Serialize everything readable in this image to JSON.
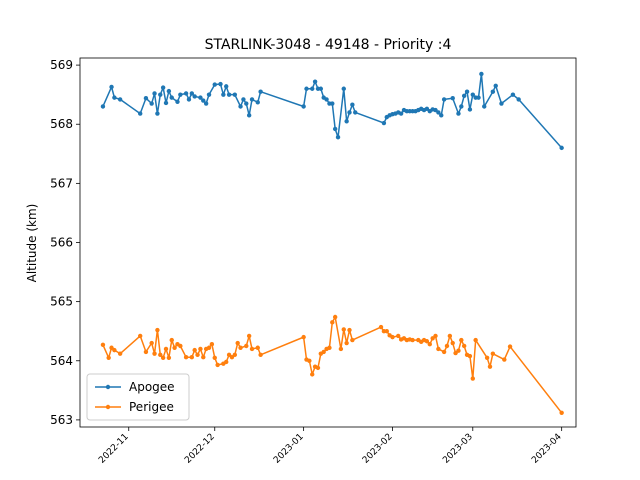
{
  "chart_data": {
    "type": "line",
    "title": "STARLINK-3048 - 49148 - Priority :4",
    "xlabel": "",
    "ylabel": "Altitude (km)",
    "x_axis_kind": "date",
    "xlim": [
      "2022-10-15",
      "2023-04-06"
    ],
    "ylim": [
      562.88,
      569.12
    ],
    "x_ticks": [
      "2022-11-01",
      "2022-12-01",
      "2023-01-01",
      "2023-02-01",
      "2023-03-01",
      "2023-04-01"
    ],
    "x_tick_labels": [
      "2022-11",
      "2022-12",
      "2023-01",
      "2023-02",
      "2023-03",
      "2023-04"
    ],
    "y_ticks": [
      563,
      564,
      565,
      566,
      567,
      568,
      569
    ],
    "y_tick_labels": [
      "563",
      "564",
      "565",
      "566",
      "567",
      "568",
      "569"
    ],
    "grid": false,
    "legend_position": "lower-left",
    "series": [
      {
        "name": "Apogee",
        "color": "#1f77b4",
        "points": [
          [
            "2022-10-23",
            568.3
          ],
          [
            "2022-10-26",
            568.63
          ],
          [
            "2022-10-27",
            568.45
          ],
          [
            "2022-10-29",
            568.42
          ],
          [
            "2022-11-05",
            568.18
          ],
          [
            "2022-11-07",
            568.44
          ],
          [
            "2022-11-09",
            568.35
          ],
          [
            "2022-11-10",
            568.52
          ],
          [
            "2022-11-11",
            568.18
          ],
          [
            "2022-11-12",
            568.5
          ],
          [
            "2022-11-13",
            568.62
          ],
          [
            "2022-11-14",
            568.36
          ],
          [
            "2022-11-15",
            568.56
          ],
          [
            "2022-11-16",
            568.45
          ],
          [
            "2022-11-18",
            568.38
          ],
          [
            "2022-11-19",
            568.5
          ],
          [
            "2022-11-21",
            568.52
          ],
          [
            "2022-11-22",
            568.42
          ],
          [
            "2022-11-23",
            568.52
          ],
          [
            "2022-11-24",
            568.47
          ],
          [
            "2022-11-26",
            568.45
          ],
          [
            "2022-11-27",
            568.4
          ],
          [
            "2022-11-28",
            568.35
          ],
          [
            "2022-11-29",
            568.5
          ],
          [
            "2022-12-01",
            568.67
          ],
          [
            "2022-12-03",
            568.68
          ],
          [
            "2022-12-04",
            568.5
          ],
          [
            "2022-12-05",
            568.64
          ],
          [
            "2022-12-06",
            568.5
          ],
          [
            "2022-12-08",
            568.5
          ],
          [
            "2022-12-10",
            568.3
          ],
          [
            "2022-12-11",
            568.42
          ],
          [
            "2022-12-12",
            568.35
          ],
          [
            "2022-12-13",
            568.15
          ],
          [
            "2022-12-14",
            568.42
          ],
          [
            "2022-12-16",
            568.37
          ],
          [
            "2022-12-17",
            568.55
          ],
          [
            "2023-01-01",
            568.3
          ],
          [
            "2023-01-02",
            568.6
          ],
          [
            "2023-01-04",
            568.6
          ],
          [
            "2023-01-05",
            568.72
          ],
          [
            "2023-01-06",
            568.6
          ],
          [
            "2023-01-07",
            568.6
          ],
          [
            "2023-01-08",
            568.45
          ],
          [
            "2023-01-09",
            568.42
          ],
          [
            "2023-01-10",
            568.35
          ],
          [
            "2023-01-11",
            568.35
          ],
          [
            "2023-01-12",
            567.92
          ],
          [
            "2023-01-13",
            567.78
          ],
          [
            "2023-01-15",
            568.6
          ],
          [
            "2023-01-16",
            568.05
          ],
          [
            "2023-01-17",
            568.2
          ],
          [
            "2023-01-18",
            568.33
          ],
          [
            "2023-01-19",
            568.2
          ],
          [
            "2023-01-29",
            568.02
          ],
          [
            "2023-01-30",
            568.12
          ],
          [
            "2023-01-31",
            568.15
          ],
          [
            "2023-02-01",
            568.17
          ],
          [
            "2023-02-02",
            568.18
          ],
          [
            "2023-02-03",
            568.2
          ],
          [
            "2023-02-04",
            568.18
          ],
          [
            "2023-02-05",
            568.24
          ],
          [
            "2023-02-06",
            568.22
          ],
          [
            "2023-02-07",
            568.22
          ],
          [
            "2023-02-08",
            568.22
          ],
          [
            "2023-02-09",
            568.22
          ],
          [
            "2023-02-10",
            568.24
          ],
          [
            "2023-02-11",
            568.26
          ],
          [
            "2023-02-12",
            568.24
          ],
          [
            "2023-02-13",
            568.26
          ],
          [
            "2023-02-14",
            568.22
          ],
          [
            "2023-02-15",
            568.25
          ],
          [
            "2023-02-16",
            568.24
          ],
          [
            "2023-02-17",
            568.2
          ],
          [
            "2023-02-18",
            568.15
          ],
          [
            "2023-02-19",
            568.42
          ],
          [
            "2023-02-22",
            568.44
          ],
          [
            "2023-02-24",
            568.18
          ],
          [
            "2023-02-25",
            568.3
          ],
          [
            "2023-02-26",
            568.48
          ],
          [
            "2023-02-27",
            568.55
          ],
          [
            "2023-02-28",
            568.25
          ],
          [
            "2023-03-01",
            568.5
          ],
          [
            "2023-03-02",
            568.45
          ],
          [
            "2023-03-03",
            568.45
          ],
          [
            "2023-03-04",
            568.85
          ],
          [
            "2023-03-05",
            568.3
          ],
          [
            "2023-03-08",
            568.55
          ],
          [
            "2023-03-09",
            568.65
          ],
          [
            "2023-03-11",
            568.35
          ],
          [
            "2023-03-15",
            568.5
          ],
          [
            "2023-03-17",
            568.42
          ],
          [
            "2023-04-01",
            567.6
          ]
        ]
      },
      {
        "name": "Perigee",
        "color": "#ff7f0e",
        "points": [
          [
            "2022-10-23",
            564.27
          ],
          [
            "2022-10-25",
            564.05
          ],
          [
            "2022-10-26",
            564.22
          ],
          [
            "2022-10-27",
            564.18
          ],
          [
            "2022-10-29",
            564.12
          ],
          [
            "2022-11-05",
            564.42
          ],
          [
            "2022-11-07",
            564.15
          ],
          [
            "2022-11-09",
            564.3
          ],
          [
            "2022-11-10",
            564.12
          ],
          [
            "2022-11-11",
            564.52
          ],
          [
            "2022-11-12",
            564.1
          ],
          [
            "2022-11-13",
            564.05
          ],
          [
            "2022-11-14",
            564.2
          ],
          [
            "2022-11-15",
            564.05
          ],
          [
            "2022-11-16",
            564.35
          ],
          [
            "2022-11-17",
            564.22
          ],
          [
            "2022-11-18",
            564.28
          ],
          [
            "2022-11-19",
            564.25
          ],
          [
            "2022-11-21",
            564.06
          ],
          [
            "2022-11-23",
            564.06
          ],
          [
            "2022-11-24",
            564.18
          ],
          [
            "2022-11-25",
            564.1
          ],
          [
            "2022-11-26",
            564.2
          ],
          [
            "2022-11-27",
            564.06
          ],
          [
            "2022-11-28",
            564.2
          ],
          [
            "2022-11-29",
            564.22
          ],
          [
            "2022-11-30",
            564.28
          ],
          [
            "2022-12-01",
            564.05
          ],
          [
            "2022-12-02",
            563.93
          ],
          [
            "2022-12-04",
            563.95
          ],
          [
            "2022-12-05",
            563.98
          ],
          [
            "2022-12-06",
            564.1
          ],
          [
            "2022-12-07",
            564.06
          ],
          [
            "2022-12-08",
            564.1
          ],
          [
            "2022-12-09",
            564.3
          ],
          [
            "2022-12-10",
            564.22
          ],
          [
            "2022-12-12",
            564.25
          ],
          [
            "2022-12-13",
            564.42
          ],
          [
            "2022-12-14",
            564.2
          ],
          [
            "2022-12-16",
            564.22
          ],
          [
            "2022-12-17",
            564.1
          ],
          [
            "2023-01-01",
            564.4
          ],
          [
            "2023-01-02",
            564.02
          ],
          [
            "2023-01-03",
            564.0
          ],
          [
            "2023-01-04",
            563.77
          ],
          [
            "2023-01-05",
            563.9
          ],
          [
            "2023-01-06",
            563.88
          ],
          [
            "2023-01-07",
            564.12
          ],
          [
            "2023-01-08",
            564.15
          ],
          [
            "2023-01-09",
            564.2
          ],
          [
            "2023-01-10",
            564.22
          ],
          [
            "2023-01-11",
            564.65
          ],
          [
            "2023-01-12",
            564.74
          ],
          [
            "2023-01-14",
            564.2
          ],
          [
            "2023-01-15",
            564.53
          ],
          [
            "2023-01-16",
            564.3
          ],
          [
            "2023-01-17",
            564.52
          ],
          [
            "2023-01-18",
            564.35
          ],
          [
            "2023-01-28",
            564.57
          ],
          [
            "2023-01-29",
            564.5
          ],
          [
            "2023-01-30",
            564.5
          ],
          [
            "2023-01-31",
            564.43
          ],
          [
            "2023-02-01",
            564.4
          ],
          [
            "2023-02-03",
            564.42
          ],
          [
            "2023-02-04",
            564.36
          ],
          [
            "2023-02-05",
            564.38
          ],
          [
            "2023-02-06",
            564.35
          ],
          [
            "2023-02-07",
            564.36
          ],
          [
            "2023-02-08",
            564.35
          ],
          [
            "2023-02-10",
            564.35
          ],
          [
            "2023-02-11",
            564.32
          ],
          [
            "2023-02-12",
            564.35
          ],
          [
            "2023-02-13",
            564.33
          ],
          [
            "2023-02-14",
            564.28
          ],
          [
            "2023-02-15",
            564.38
          ],
          [
            "2023-02-16",
            564.42
          ],
          [
            "2023-02-17",
            564.2
          ],
          [
            "2023-02-19",
            564.15
          ],
          [
            "2023-02-20",
            564.25
          ],
          [
            "2023-02-21",
            564.42
          ],
          [
            "2023-02-22",
            564.3
          ],
          [
            "2023-02-23",
            564.13
          ],
          [
            "2023-02-24",
            564.17
          ],
          [
            "2023-02-25",
            564.35
          ],
          [
            "2023-02-26",
            564.25
          ],
          [
            "2023-02-27",
            564.1
          ],
          [
            "2023-02-28",
            564.08
          ],
          [
            "2023-03-01",
            563.7
          ],
          [
            "2023-03-02",
            564.35
          ],
          [
            "2023-03-06",
            564.05
          ],
          [
            "2023-03-07",
            563.9
          ],
          [
            "2023-03-08",
            564.12
          ],
          [
            "2023-03-12",
            564.02
          ],
          [
            "2023-03-14",
            564.24
          ],
          [
            "2023-04-01",
            563.12
          ]
        ]
      }
    ]
  }
}
